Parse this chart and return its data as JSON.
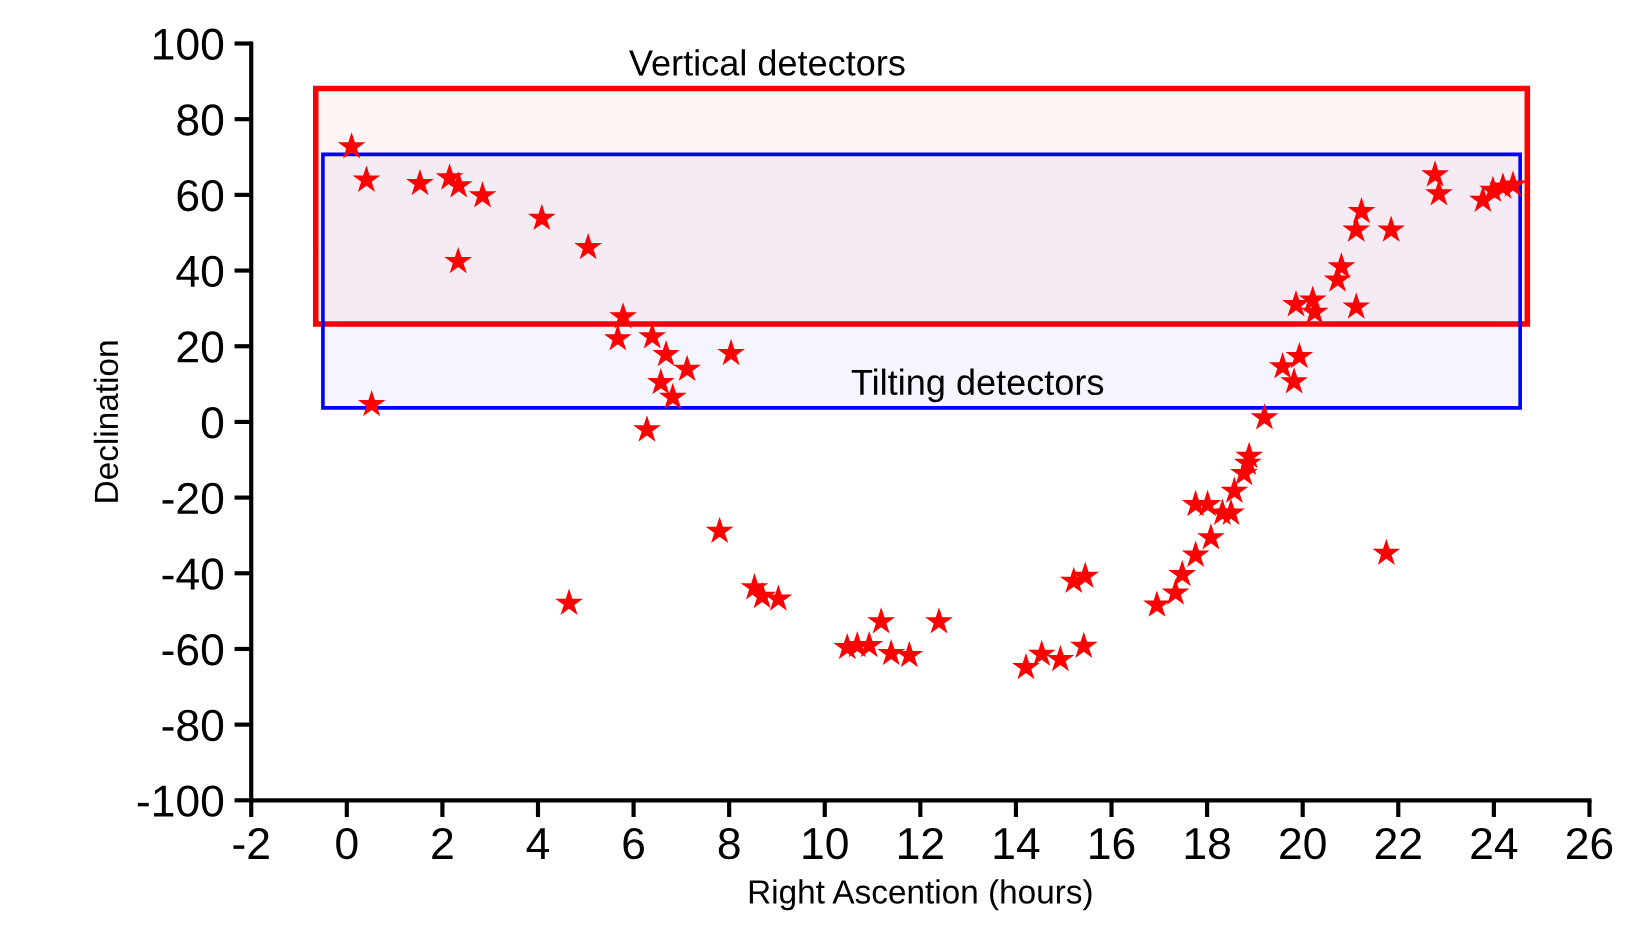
{
  "chart_data": {
    "type": "scatter",
    "xlabel": "Right Ascention (hours)",
    "ylabel": "Declination",
    "xlim": [
      -2,
      26
    ],
    "xticks": [
      -2,
      0,
      2,
      4,
      6,
      8,
      10,
      12,
      14,
      16,
      18,
      20,
      22,
      24,
      26
    ],
    "ylim": [
      -100,
      100
    ],
    "yticks": [
      -100,
      -80,
      -60,
      -40,
      -20,
      0,
      20,
      40,
      60,
      80,
      100
    ],
    "grid": false,
    "legend": false,
    "marker": "star",
    "bands": [
      {
        "axis": "y",
        "from": 25.9,
        "to": 88.1,
        "label": "Vertical detectors",
        "color": "#ff0000"
      },
      {
        "axis": "y",
        "from": 3.7,
        "to": 70.7,
        "label": "Tilting detectors",
        "color": "#0000ff"
      }
    ],
    "series": [
      {
        "color": "#ff0000",
        "x": [
          0.1,
          0.41,
          1.53,
          2.15,
          2.34,
          2.84,
          4.08,
          2.33,
          5.05,
          5.78,
          5.67,
          6.39,
          6.68,
          7.12,
          6.57,
          6.82,
          8.04,
          0.52,
          6.28,
          7.8,
          4.65,
          8.53,
          8.69,
          9.03,
          10.47,
          10.68,
          10.93,
          11.18,
          11.39,
          11.77,
          12.39,
          14.21,
          14.54,
          14.93,
          15.42,
          15.21,
          15.45,
          16.95,
          17.34,
          17.48,
          17.76,
          18.08,
          17.76,
          18.01,
          18.32,
          18.5,
          18.57,
          18.77,
          18.85,
          18.88,
          19.2,
          19.58,
          19.82,
          19.93,
          19.86,
          20.21,
          20.25,
          21.12,
          20.81,
          20.73,
          21.23,
          21.12,
          21.85,
          21.75,
          22.77,
          22.85,
          23.77,
          23.98,
          24.19,
          24.4
        ],
        "values": [
          72.7,
          63.9,
          63.0,
          64.5,
          62.4,
          59.8,
          53.8,
          42.4,
          46.1,
          27.8,
          22.0,
          22.5,
          17.8,
          13.9,
          10.4,
          6.5,
          18.1,
          4.6,
          -2.1,
          -28.9,
          -47.9,
          -43.8,
          -46.1,
          -46.8,
          -59.6,
          -59.1,
          -59.1,
          -52.8,
          -61.2,
          -61.7,
          -52.8,
          -64.9,
          -61.4,
          -62.8,
          -59.3,
          -42.1,
          -40.8,
          -48.4,
          -45.2,
          -40.3,
          -35.2,
          -30.6,
          -21.8,
          -21.8,
          -24.1,
          -24.1,
          -18.3,
          -13.6,
          -10.9,
          -9.1,
          1.1,
          14.6,
          10.6,
          17.3,
          31.0,
          32.2,
          29.0,
          30.4,
          41.0,
          37.5,
          55.6,
          50.7,
          50.7,
          -34.7,
          65.3,
          60.3,
          58.6,
          61.2,
          62.1,
          62.6
        ]
      }
    ]
  }
}
